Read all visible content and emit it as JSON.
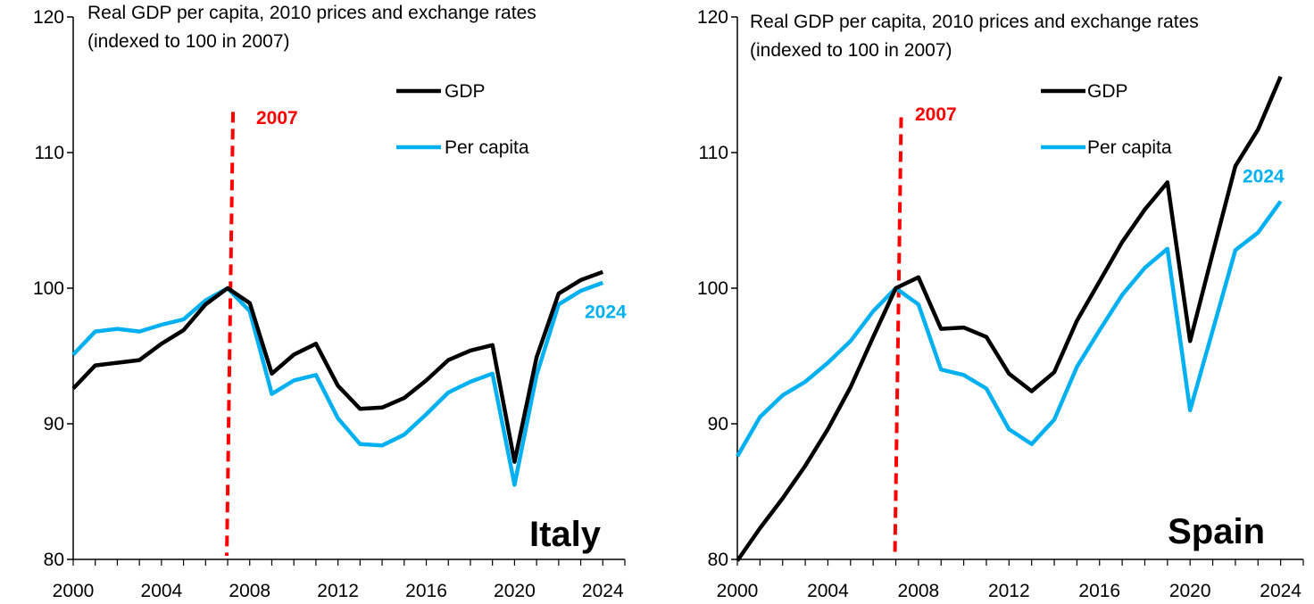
{
  "colors": {
    "gdp": "#000000",
    "per_capita": "#00b0f0",
    "marker": "#ff0000"
  },
  "chart_data": [
    {
      "type": "line",
      "country": "Italy",
      "subtitle_line1": "Real GDP per capita, 2010 prices and exchange rates",
      "subtitle_line2": "(indexed to 100 in 2007)",
      "xlim": [
        2000,
        2025
      ],
      "ylim": [
        80,
        120
      ],
      "x_ticks": [
        2000,
        2004,
        2008,
        2012,
        2016,
        2020,
        2024
      ],
      "x_tick_labels": [
        "2000",
        "2004",
        "2008",
        "2012",
        "2016",
        "2020",
        "2024"
      ],
      "y_ticks": [
        80,
        90,
        100,
        110,
        120
      ],
      "y_tick_labels": [
        "80",
        "90",
        "100",
        "110",
        "120"
      ],
      "marker": {
        "x": 2007,
        "y_top": 113,
        "label": "2007"
      },
      "end_label": "2024",
      "end_label_y": 97.8,
      "legend": [
        "GDP",
        "Per capita"
      ],
      "x": [
        2000,
        2001,
        2002,
        2003,
        2004,
        2005,
        2006,
        2007,
        2008,
        2009,
        2010,
        2011,
        2012,
        2013,
        2014,
        2015,
        2016,
        2017,
        2018,
        2019,
        2020,
        2021,
        2022,
        2023,
        2024
      ],
      "series": [
        {
          "name": "GDP",
          "values": [
            92.6,
            94.3,
            94.5,
            94.7,
            95.9,
            96.9,
            98.8,
            100.0,
            98.9,
            93.7,
            95.1,
            95.9,
            92.8,
            91.1,
            91.2,
            91.9,
            93.2,
            94.7,
            95.4,
            95.8,
            87.2,
            94.9,
            99.6,
            100.6,
            101.2
          ]
        },
        {
          "name": "Per capita",
          "values": [
            95.1,
            96.8,
            97.0,
            96.8,
            97.3,
            97.7,
            99.1,
            100.0,
            98.3,
            92.2,
            93.2,
            93.6,
            90.4,
            88.5,
            88.4,
            89.2,
            90.7,
            92.3,
            93.1,
            93.7,
            85.5,
            93.6,
            98.8,
            99.8,
            100.4
          ]
        }
      ]
    },
    {
      "type": "line",
      "country": "Spain",
      "subtitle_line1": "Real GDP per capita, 2010 prices and exchange rates",
      "subtitle_line2": "(indexed to 100 in 2007)",
      "xlim": [
        2000,
        2025
      ],
      "ylim": [
        80,
        120
      ],
      "x_ticks": [
        2000,
        2004,
        2008,
        2012,
        2016,
        2020,
        2024
      ],
      "x_tick_labels": [
        "2000",
        "2004",
        "2008",
        "2012",
        "2016",
        "2020",
        "2024"
      ],
      "y_ticks": [
        80,
        90,
        100,
        110,
        120
      ],
      "y_tick_labels": [
        "80",
        "90",
        "100",
        "110",
        "120"
      ],
      "marker": {
        "x": 2007,
        "y_top": 112.6,
        "label": "2007"
      },
      "end_label": "2024",
      "end_label_y": 107.8,
      "legend": [
        "GDP",
        "Per capita"
      ],
      "x": [
        2000,
        2001,
        2002,
        2003,
        2004,
        2005,
        2006,
        2007,
        2008,
        2009,
        2010,
        2011,
        2012,
        2013,
        2014,
        2015,
        2016,
        2017,
        2018,
        2019,
        2020,
        2021,
        2022,
        2023,
        2024
      ],
      "series": [
        {
          "name": "GDP",
          "values": [
            79.9,
            82.3,
            84.5,
            86.9,
            89.6,
            92.7,
            96.4,
            100.0,
            100.8,
            97.0,
            97.1,
            96.4,
            93.7,
            92.4,
            93.8,
            97.6,
            100.5,
            103.4,
            105.8,
            107.8,
            96.1,
            102.6,
            109.0,
            111.7,
            115.6
          ]
        },
        {
          "name": "Per capita",
          "values": [
            87.6,
            90.5,
            92.1,
            93.1,
            94.5,
            96.1,
            98.3,
            100.0,
            98.8,
            94.0,
            93.6,
            92.6,
            89.6,
            88.5,
            90.3,
            94.2,
            96.9,
            99.5,
            101.5,
            102.9,
            91.0,
            96.9,
            102.8,
            104.1,
            106.4
          ]
        }
      ]
    }
  ]
}
